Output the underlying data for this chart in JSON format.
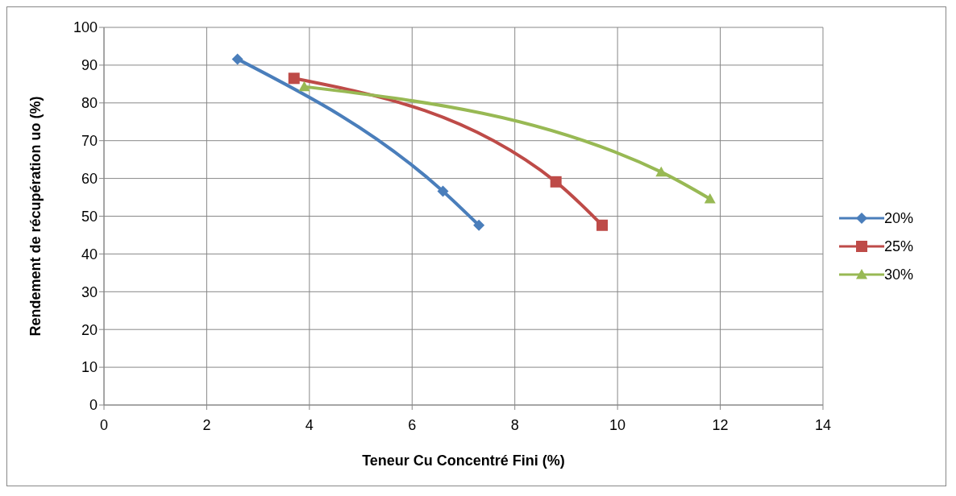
{
  "chart_data": {
    "type": "line",
    "xlabel": "Teneur Cu Concentré Fini (%)",
    "ylabel": "Rendement  de récupération uo (%)",
    "xlim": [
      0,
      14
    ],
    "xticks": [
      0,
      2,
      4,
      6,
      8,
      10,
      12,
      14
    ],
    "ylim": [
      0,
      100
    ],
    "yticks": [
      0,
      10,
      20,
      30,
      40,
      50,
      60,
      70,
      80,
      90,
      100
    ],
    "grid": true,
    "legend": "right",
    "line_style": "solid",
    "series": [
      {
        "name": "20%",
        "color": "#4a7ebb",
        "marker": "diamond",
        "x": [
          2.6,
          6.6,
          7.3
        ],
        "values": [
          91.6,
          56.6,
          47.6
        ]
      },
      {
        "name": "25%",
        "color": "#be4b48",
        "marker": "square",
        "x": [
          3.7,
          8.8,
          9.7
        ],
        "values": [
          86.5,
          59.1,
          47.6
        ]
      },
      {
        "name": "30%",
        "color": "#98b954",
        "marker": "triangle",
        "x": [
          3.9,
          10.85,
          11.8
        ],
        "values": [
          84.3,
          61.7,
          54.6
        ]
      }
    ]
  }
}
